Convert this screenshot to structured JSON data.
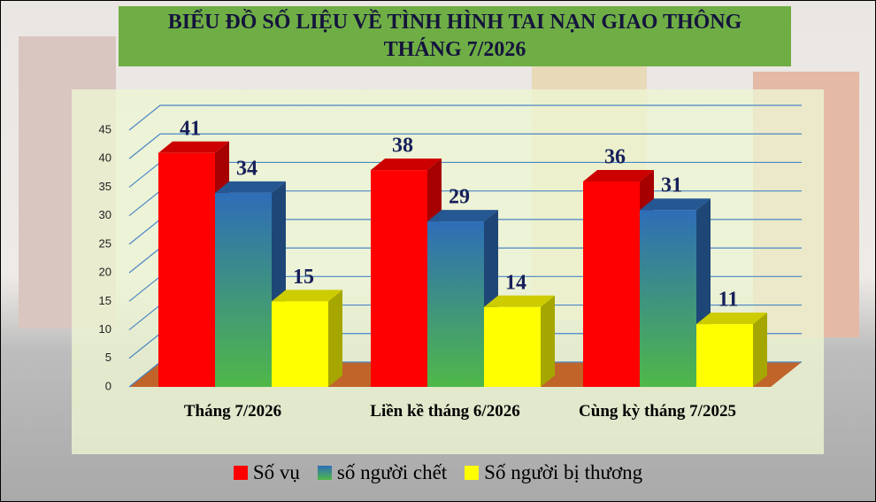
{
  "chart_data": {
    "type": "bar3d",
    "title": "BIỂU ĐỒ SỐ LIỆU VỀ TÌNH HÌNH TAI NẠN GIAO THÔNG THÁNG 7/2026",
    "categories": [
      "Tháng 7/2026",
      "Liền kề tháng 6/2026",
      "Cùng kỳ tháng 7/2025"
    ],
    "series": [
      {
        "name": "Số vụ",
        "color": "#ff0000",
        "values": [
          41,
          38,
          36
        ]
      },
      {
        "name": "số người chết",
        "color": "#2e6db8",
        "gradient_color": "#4fb848",
        "values": [
          34,
          29,
          31
        ]
      },
      {
        "name": "Số người bị thương",
        "color": "#ffff00",
        "values": [
          15,
          14,
          11
        ]
      }
    ],
    "ylim": [
      0,
      45
    ],
    "yticks": [
      0,
      5,
      10,
      15,
      20,
      25,
      30,
      35,
      40,
      45
    ],
    "grid": true,
    "legend": "bottom"
  }
}
